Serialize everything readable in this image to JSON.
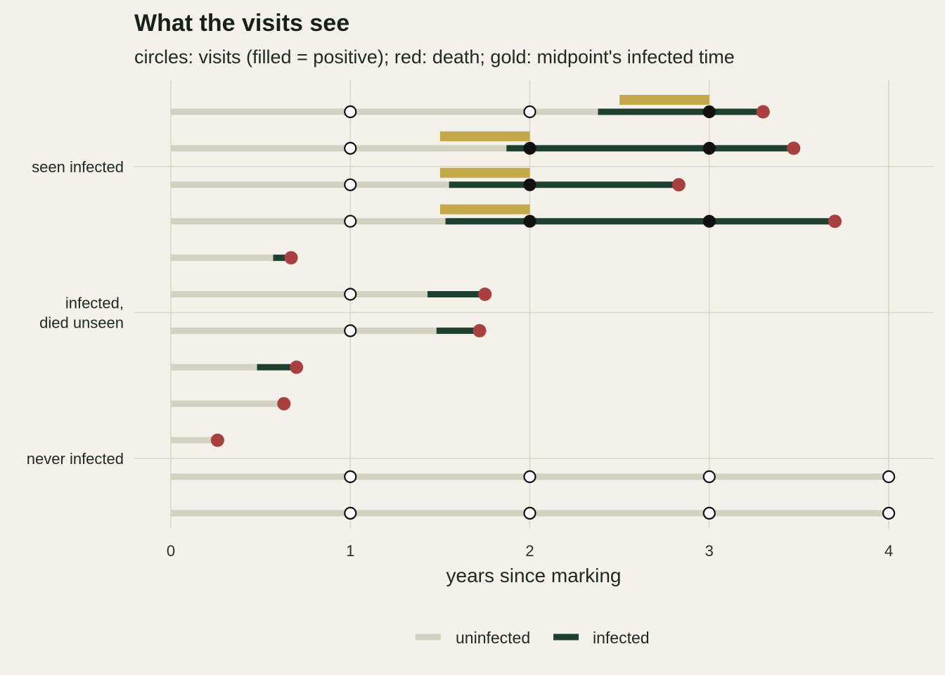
{
  "chart_data": {
    "type": "timeline",
    "title": "What the visits see",
    "subtitle": "circles: visits (filled = positive); red: death; gold: midpoint's infected time",
    "xlabel": "years since marking",
    "xlim": [
      0,
      4.25
    ],
    "x_ticks": [
      0,
      1,
      2,
      3,
      4
    ],
    "grid": true,
    "legend_position": "bottom",
    "legend": [
      {
        "name": "uninfected",
        "color": "#d3d2c0"
      },
      {
        "name": "infected",
        "color": "#1f4030"
      }
    ],
    "groups": [
      {
        "label": "seen infected",
        "rows": [
          0,
          1,
          2,
          3
        ]
      },
      {
        "label": "infected,\ndied unseen",
        "rows": [
          4,
          5,
          6,
          7
        ]
      },
      {
        "label": "never infected",
        "rows": [
          8,
          9,
          10,
          11
        ]
      }
    ],
    "individuals": [
      {
        "end": 3.3,
        "death": true,
        "infection": 2.38,
        "midpoint_band": [
          2.5,
          3
        ],
        "visits": [
          {
            "t": 1,
            "positive": false
          },
          {
            "t": 2,
            "positive": false
          },
          {
            "t": 3,
            "positive": true
          }
        ]
      },
      {
        "end": 3.47,
        "death": true,
        "infection": 1.87,
        "midpoint_band": [
          1.5,
          2
        ],
        "visits": [
          {
            "t": 1,
            "positive": false
          },
          {
            "t": 2,
            "positive": true
          },
          {
            "t": 3,
            "positive": true
          }
        ]
      },
      {
        "end": 2.83,
        "death": true,
        "infection": 1.55,
        "midpoint_band": [
          1.5,
          2
        ],
        "visits": [
          {
            "t": 1,
            "positive": false
          },
          {
            "t": 2,
            "positive": true
          }
        ]
      },
      {
        "end": 3.7,
        "death": true,
        "infection": 1.53,
        "midpoint_band": [
          1.5,
          2
        ],
        "visits": [
          {
            "t": 1,
            "positive": false
          },
          {
            "t": 2,
            "positive": true
          },
          {
            "t": 3,
            "positive": true
          }
        ]
      },
      {
        "end": 0.67,
        "death": true,
        "infection": 0.57,
        "midpoint_band": null,
        "visits": []
      },
      {
        "end": 1.75,
        "death": true,
        "infection": 1.43,
        "midpoint_band": null,
        "visits": [
          {
            "t": 1,
            "positive": false
          }
        ]
      },
      {
        "end": 1.72,
        "death": true,
        "infection": 1.48,
        "midpoint_band": null,
        "visits": [
          {
            "t": 1,
            "positive": false
          }
        ]
      },
      {
        "end": 0.7,
        "death": true,
        "infection": 0.48,
        "midpoint_band": null,
        "visits": []
      },
      {
        "end": 0.63,
        "death": true,
        "infection": null,
        "midpoint_band": null,
        "visits": []
      },
      {
        "end": 0.26,
        "death": true,
        "infection": null,
        "midpoint_band": null,
        "visits": []
      },
      {
        "end": 4.0,
        "death": false,
        "infection": null,
        "midpoint_band": null,
        "visits": [
          {
            "t": 1,
            "positive": false
          },
          {
            "t": 2,
            "positive": false
          },
          {
            "t": 3,
            "positive": false
          },
          {
            "t": 4,
            "positive": false
          }
        ]
      },
      {
        "end": 4.0,
        "death": false,
        "infection": null,
        "midpoint_band": null,
        "visits": [
          {
            "t": 1,
            "positive": false
          },
          {
            "t": 2,
            "positive": false
          },
          {
            "t": 3,
            "positive": false
          },
          {
            "t": 4,
            "positive": false
          }
        ]
      }
    ],
    "colors": {
      "background": "#f3f1e9",
      "grid": "#d9d8c8",
      "uninfected": "#d3d2c0",
      "infected": "#1f4030",
      "death": "#a84040",
      "midpoint": "#c4a84a",
      "visit_outline": "#111111",
      "visit_positive": "#111111",
      "visit_negative": "#ffffff"
    }
  }
}
